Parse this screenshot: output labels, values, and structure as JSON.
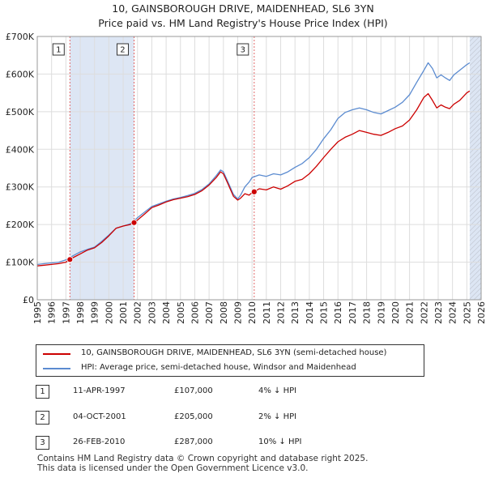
{
  "title_line1": "10, GAINSBOROUGH DRIVE, MAIDENHEAD, SL6 3YN",
  "title_line2": "Price paid vs. HM Land Registry's House Price Index (HPI)",
  "colors": {
    "price_paid": "#cc0000",
    "hpi": "#5b8bd0",
    "shade": "#dde6f4",
    "marker_line": "#e06666"
  },
  "chart_data": {
    "type": "line",
    "xlim": [
      1995,
      2026
    ],
    "ylim": [
      0,
      700000
    ],
    "y_ticks": [
      0,
      100000,
      200000,
      300000,
      400000,
      500000,
      600000,
      700000
    ],
    "y_tick_labels": [
      "£0",
      "£100K",
      "£200K",
      "£300K",
      "£400K",
      "£500K",
      "£600K",
      "£700K"
    ],
    "x_ticks": [
      1995,
      1996,
      1997,
      1998,
      1999,
      2000,
      2001,
      2002,
      2003,
      2004,
      2005,
      2006,
      2007,
      2008,
      2009,
      2010,
      2011,
      2012,
      2013,
      2014,
      2015,
      2016,
      2017,
      2018,
      2019,
      2020,
      2021,
      2022,
      2023,
      2024,
      2025,
      2026
    ],
    "x_tick_labels": [
      "1995",
      "1996",
      "1997",
      "1998",
      "1999",
      "2000",
      "2001",
      "2002",
      "2003",
      "2004",
      "2005",
      "2006",
      "2007",
      "2008",
      "2009",
      "2010",
      "2011",
      "2012",
      "2013",
      "2014",
      "2015",
      "2016",
      "2017",
      "2018",
      "2019",
      "2020",
      "2021",
      "2022",
      "2023",
      "2024",
      "2025",
      "2026"
    ],
    "grid": true,
    "shaded_ranges": [
      [
        1997.28,
        2001.76
      ],
      [
        2025.2,
        2026
      ]
    ],
    "transactions": [
      {
        "label": "1",
        "x": 1997.28,
        "y": 107000
      },
      {
        "label": "2",
        "x": 2001.76,
        "y": 205000
      },
      {
        "label": "3",
        "x": 2010.15,
        "y": 287000
      }
    ],
    "series": [
      {
        "name": "10, GAINSBOROUGH DRIVE, MAIDENHEAD, SL6 3YN (semi-detached house)",
        "x": [
          1995,
          1995.5,
          1996,
          1996.5,
          1997,
          1997.28,
          1997.5,
          1998,
          1998.5,
          1999,
          1999.5,
          2000,
          2000.5,
          2001,
          2001.5,
          2001.76,
          2002,
          2002.5,
          2003,
          2003.5,
          2004,
          2004.5,
          2005,
          2005.5,
          2006,
          2006.5,
          2007,
          2007.5,
          2007.8,
          2008,
          2008.3,
          2008.7,
          2009,
          2009.2,
          2009.5,
          2009.8,
          2010,
          2010.15,
          2010.5,
          2011,
          2011.5,
          2012,
          2012.5,
          2013,
          2013.5,
          2014,
          2014.5,
          2015,
          2015.5,
          2016,
          2016.5,
          2017,
          2017.5,
          2018,
          2018.5,
          2019,
          2019.5,
          2020,
          2020.5,
          2021,
          2021.5,
          2022,
          2022.3,
          2022.6,
          2022.9,
          2023.2,
          2023.5,
          2023.8,
          2024.1,
          2024.5,
          2025,
          2025.2
        ],
        "y": [
          90000,
          92000,
          94000,
          96000,
          100000,
          107000,
          112000,
          122000,
          132000,
          138000,
          152000,
          170000,
          190000,
          196000,
          200000,
          205000,
          212000,
          228000,
          245000,
          252000,
          260000,
          266000,
          270000,
          274000,
          280000,
          290000,
          305000,
          325000,
          340000,
          335000,
          310000,
          275000,
          265000,
          270000,
          282000,
          278000,
          285000,
          287000,
          295000,
          292000,
          300000,
          294000,
          303000,
          315000,
          320000,
          335000,
          355000,
          378000,
          400000,
          420000,
          432000,
          440000,
          450000,
          445000,
          440000,
          437000,
          445000,
          455000,
          462000,
          478000,
          505000,
          538000,
          548000,
          530000,
          510000,
          518000,
          512000,
          508000,
          520000,
          530000,
          550000,
          555000
        ]
      },
      {
        "name": "HPI: Average price, semi-detached house, Windsor and Maidenhead",
        "x": [
          1995,
          1995.5,
          1996,
          1996.5,
          1997,
          1997.5,
          1998,
          1998.5,
          1999,
          1999.5,
          2000,
          2000.5,
          2001,
          2001.5,
          2002,
          2002.5,
          2003,
          2003.5,
          2004,
          2004.5,
          2005,
          2005.5,
          2006,
          2006.5,
          2007,
          2007.5,
          2007.8,
          2008,
          2008.3,
          2008.7,
          2009,
          2009.2,
          2009.5,
          2009.8,
          2010,
          2010.5,
          2011,
          2011.5,
          2012,
          2012.5,
          2013,
          2013.5,
          2014,
          2014.5,
          2015,
          2015.5,
          2016,
          2016.5,
          2017,
          2017.5,
          2018,
          2018.5,
          2019,
          2019.5,
          2020,
          2020.5,
          2021,
          2021.5,
          2022,
          2022.3,
          2022.6,
          2022.9,
          2023.2,
          2023.5,
          2023.8,
          2024.1,
          2024.5,
          2025,
          2025.2
        ],
        "y": [
          94000,
          96000,
          98000,
          100000,
          106000,
          117000,
          127000,
          134000,
          140000,
          155000,
          172000,
          190000,
          196000,
          202000,
          218000,
          233000,
          248000,
          255000,
          262000,
          268000,
          272000,
          277000,
          283000,
          293000,
          308000,
          330000,
          345000,
          340000,
          315000,
          280000,
          268000,
          278000,
          300000,
          313000,
          325000,
          332000,
          328000,
          335000,
          332000,
          340000,
          352000,
          362000,
          378000,
          400000,
          428000,
          452000,
          482000,
          498000,
          505000,
          510000,
          505000,
          498000,
          494000,
          503000,
          512000,
          525000,
          545000,
          578000,
          610000,
          630000,
          615000,
          590000,
          598000,
          590000,
          583000,
          598000,
          610000,
          625000,
          630000
        ]
      }
    ]
  },
  "legend": {
    "price_paid_label": "10, GAINSBOROUGH DRIVE, MAIDENHEAD, SL6 3YN (semi-detached house)",
    "hpi_label": "HPI: Average price, semi-detached house, Windsor and Maidenhead"
  },
  "transactions_table": [
    {
      "num": "1",
      "date": "11-APR-1997",
      "price": "£107,000",
      "diff": "4% ↓ HPI"
    },
    {
      "num": "2",
      "date": "04-OCT-2001",
      "price": "£205,000",
      "diff": "2% ↓ HPI"
    },
    {
      "num": "3",
      "date": "26-FEB-2010",
      "price": "£287,000",
      "diff": "10% ↓ HPI"
    }
  ],
  "footer_line1": "Contains HM Land Registry data © Crown copyright and database right 2025.",
  "footer_line2": "This data is licensed under the Open Government Licence v3.0."
}
